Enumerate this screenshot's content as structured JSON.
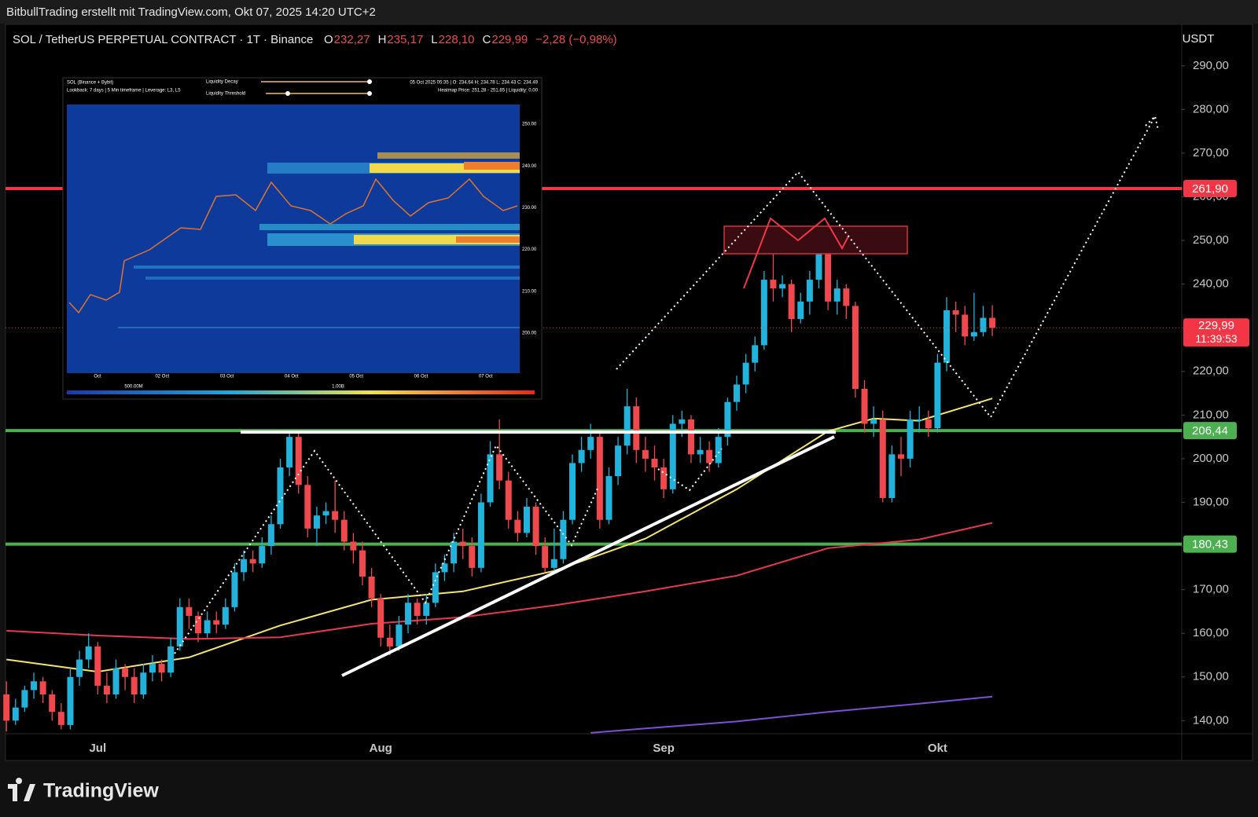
{
  "header": {
    "credit": "BitbullTrading erstellt mit TradingView.com, Okt 07, 2025 14:20 UTC+2",
    "symbol": "SOL / TetherUS PERPETUAL CONTRACT · 1T · Binance",
    "ohlc": [
      {
        "key": "O",
        "text": "232,27"
      },
      {
        "key": "H",
        "text": "235,17"
      },
      {
        "key": "L",
        "text": "228,10"
      },
      {
        "key": "C",
        "text": "229,99"
      }
    ],
    "change": "−2,28 (−0,98%)",
    "currency": "USDT"
  },
  "footer": {
    "brand": "TradingView"
  },
  "chart_data": {
    "type": "candlestick",
    "categories": [
      null,
      null,
      null,
      null,
      null,
      null,
      null,
      null,
      null,
      null,
      "Jul",
      null,
      null,
      null,
      null,
      null,
      null,
      null,
      null,
      null,
      null,
      null,
      null,
      null,
      null,
      null,
      null,
      null,
      null,
      null,
      null,
      null,
      null,
      null,
      null,
      null,
      null,
      null,
      null,
      null,
      null,
      "Aug",
      null,
      null,
      null,
      null,
      null,
      null,
      null,
      null,
      null,
      null,
      null,
      null,
      null,
      null,
      null,
      null,
      null,
      null,
      null,
      null,
      null,
      null,
      null,
      null,
      null,
      null,
      null,
      null,
      null,
      null,
      "Sep",
      null,
      null,
      null,
      null,
      null,
      null,
      null,
      null,
      null,
      null,
      null,
      null,
      null,
      null,
      null,
      null,
      null,
      null,
      null,
      null,
      null,
      null,
      null,
      null,
      null,
      null,
      null,
      null,
      null,
      "Okt",
      null,
      null,
      null,
      null,
      null,
      null
    ],
    "open": [
      146,
      140,
      143,
      147,
      149,
      146,
      142,
      139,
      150,
      154,
      157,
      148,
      146,
      152,
      150,
      146,
      151,
      153,
      151,
      157,
      166,
      164,
      160,
      163,
      162,
      166,
      174,
      177,
      176,
      180,
      185,
      198,
      205,
      194,
      184,
      187,
      188,
      186,
      181,
      179,
      173,
      168,
      159,
      157,
      162,
      167,
      164,
      167,
      174,
      176,
      181,
      180,
      175,
      190,
      201,
      195,
      186,
      183,
      189,
      180,
      175,
      177,
      186,
      199,
      202,
      205,
      186,
      196,
      203,
      212,
      202,
      200,
      198,
      193,
      208,
      209,
      201,
      202,
      199,
      205,
      213,
      217,
      222,
      226,
      241,
      239,
      240,
      232,
      236,
      241,
      247,
      236,
      239,
      235,
      216,
      208,
      209,
      191,
      201,
      200,
      209,
      209,
      207,
      222,
      234,
      233,
      228,
      229,
      232.27
    ],
    "high": [
      149,
      145,
      148,
      151,
      150,
      147,
      144,
      152,
      156,
      160,
      158,
      151,
      154,
      153,
      152,
      153,
      155,
      154,
      159,
      168,
      168,
      165,
      165,
      165,
      168,
      176,
      179,
      179,
      182,
      187,
      200,
      206,
      206,
      196,
      189,
      190,
      195,
      188,
      183,
      181,
      175,
      169,
      162,
      164,
      169,
      168,
      169,
      176,
      178,
      183,
      184,
      182,
      192,
      204,
      209,
      197,
      188,
      191,
      190,
      182,
      184,
      188,
      201,
      205,
      208,
      206,
      198,
      205,
      216,
      214,
      205,
      203,
      200,
      210,
      211,
      210,
      205,
      204,
      207,
      214,
      219,
      224,
      228,
      243,
      248,
      242,
      241,
      238,
      243,
      253,
      248,
      241,
      240,
      236,
      218,
      212,
      211,
      203,
      205,
      211,
      212,
      211,
      224,
      237,
      236,
      235,
      238,
      235,
      235.17
    ],
    "low": [
      137.5,
      139,
      142,
      145,
      144,
      140,
      138,
      138,
      148,
      152,
      146,
      144,
      145,
      147,
      144,
      145,
      149,
      149,
      150,
      156,
      161,
      158,
      159,
      160,
      161,
      165,
      172,
      174,
      175,
      178,
      184,
      196,
      192,
      182,
      180,
      185,
      183,
      179,
      176,
      171,
      166,
      157,
      155,
      156,
      160,
      162,
      162,
      166,
      172,
      174,
      177,
      173,
      174,
      189,
      193,
      184,
      181,
      182,
      178,
      174,
      174,
      176,
      185,
      197,
      200,
      184,
      185,
      194,
      201,
      199,
      197,
      195,
      191,
      192,
      205,
      199,
      199,
      197,
      198,
      203,
      211,
      215,
      220,
      225,
      236,
      237,
      229,
      231,
      233,
      239,
      234,
      233,
      232,
      214,
      206,
      205,
      190,
      190,
      196,
      198,
      206,
      205,
      206,
      220,
      229,
      226,
      227,
      228,
      228.1
    ],
    "close": [
      140,
      143,
      147,
      149,
      146,
      142,
      139,
      150,
      154,
      157,
      148,
      146,
      152,
      150,
      146,
      151,
      153,
      151,
      157,
      166,
      164,
      160,
      163,
      162,
      166,
      174,
      177,
      176,
      180,
      185,
      198,
      205,
      194,
      184,
      187,
      188,
      186,
      181,
      179,
      173,
      168,
      159,
      157,
      162,
      167,
      164,
      167,
      174,
      176,
      181,
      180,
      175,
      190,
      201,
      195,
      186,
      183,
      189,
      180,
      175,
      177,
      186,
      199,
      202,
      205,
      186,
      196,
      203,
      212,
      202,
      200,
      198,
      193,
      208,
      209,
      201,
      202,
      199,
      205,
      213,
      217,
      222,
      226,
      241,
      239,
      240,
      232,
      236,
      241,
      247,
      236,
      239,
      235,
      216,
      208,
      209,
      191,
      201,
      200,
      209,
      209,
      207,
      222,
      234,
      233,
      228,
      229,
      232.27,
      229.99
    ],
    "up_color": "#22b3dc",
    "down_color": "#f0494d",
    "ylim": [
      137,
      299.5
    ],
    "yticks": [
      {
        "value": 140,
        "label": "140,00"
      },
      {
        "value": 150,
        "label": "150,00"
      },
      {
        "value": 160,
        "label": "160,00"
      },
      {
        "value": 170,
        "label": "170,00"
      },
      {
        "value": 180,
        "label": "180,00"
      },
      {
        "value": 190,
        "label": "190,00"
      },
      {
        "value": 200,
        "label": "200,00"
      },
      {
        "value": 210,
        "label": "210,00"
      },
      {
        "value": 220,
        "label": "220,00"
      },
      {
        "value": 230,
        "label": "230,00"
      },
      {
        "value": 240,
        "label": "240,00"
      },
      {
        "value": 250,
        "label": "250,00"
      },
      {
        "value": 260,
        "label": "260,00"
      },
      {
        "value": 270,
        "label": "270,00"
      },
      {
        "value": 280,
        "label": "280,00"
      },
      {
        "value": 290,
        "label": "290,00"
      }
    ],
    "grid": false,
    "series": [
      {
        "color": "#f5e46a",
        "x": [
          0,
          10,
          20,
          30,
          40,
          50,
          60,
          70,
          80,
          90,
          95,
          100,
          108
        ],
        "values": [
          154,
          151.2,
          154.5,
          161.8,
          167.7,
          169.6,
          174.3,
          181.7,
          193,
          206.3,
          209.2,
          208.7,
          213.8
        ]
      },
      {
        "color": "#e8384f",
        "x": [
          0,
          10,
          20,
          30,
          40,
          50,
          60,
          70,
          80,
          90,
          100,
          108
        ],
        "values": [
          160.6,
          159.5,
          158.7,
          159.1,
          162.2,
          163.7,
          166.4,
          169.6,
          173.2,
          179.5,
          181.5,
          185.3
        ]
      },
      {
        "color": "#7b4fd6",
        "x": [
          64,
          70,
          80,
          90,
          100,
          108
        ],
        "values": [
          137.2,
          138.2,
          139.8,
          142,
          143.9,
          145.5
        ]
      }
    ],
    "levels": [
      {
        "value": 261.9,
        "label": "261,90",
        "color": "#f23645"
      },
      {
        "value": 206.44,
        "label": "206,44",
        "color": "#4caf50"
      },
      {
        "value": 180.43,
        "label": "180,43",
        "color": "#4caf50"
      }
    ],
    "last_price_label": "229,99",
    "countdown": "11:39:53",
    "last_color": "#f23645"
  },
  "inset": {
    "title": "SOL (Binance + Bybit)",
    "subtitle": "Lookback: 7 days | 5 Min timeframe | Leverage: L3, L5",
    "controls": [
      "Liquidity Decay",
      "Liquidity Threshold"
    ],
    "info": [
      "05 Oct 2025 05:35 | O: 234.64 H: 234.78 L: 234.43 C: 234.49",
      "Heatmap Price: 251.28 - 251.85 | Liquidity: 0.00"
    ],
    "y_labels": [
      "250.00",
      "240.00",
      "230.00",
      "220.00",
      "210.00",
      "200.00"
    ],
    "x_labels": [
      "Oct",
      "02 Oct",
      "03 Oct",
      "04 Oct",
      "05 Oct",
      "06 Oct",
      "07 Oct"
    ],
    "legend_labels": [
      "500.00M",
      "1.00B"
    ]
  }
}
